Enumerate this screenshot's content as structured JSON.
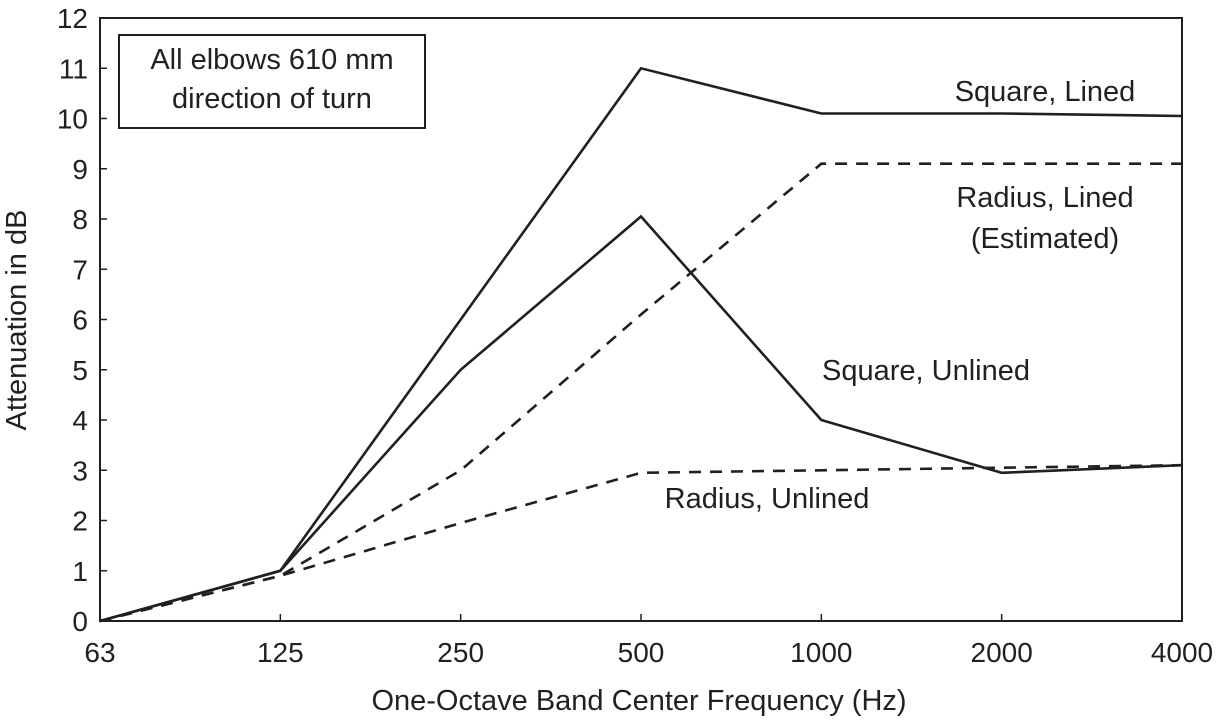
{
  "chart_data": {
    "type": "line",
    "categories": [
      "63",
      "125",
      "250",
      "500",
      "1000",
      "2000",
      "4000"
    ],
    "xlabel": "One-Octave Band Center Frequency (Hz)",
    "ylabel": "Attenuation in dB",
    "ylim": [
      0,
      12
    ],
    "yticks": [
      "0",
      "1",
      "2",
      "3",
      "4",
      "5",
      "6",
      "7",
      "8",
      "9",
      "10",
      "11",
      "12"
    ],
    "grid": false,
    "note": [
      "All elbows 610 mm",
      "direction of turn"
    ],
    "series": [
      {
        "name": "Square, Lined",
        "label_lines": [
          "Square, Lined"
        ],
        "style": "solid",
        "values": [
          0,
          1,
          6,
          11,
          10.1,
          10.1,
          10.05
        ]
      },
      {
        "name": "Radius, Lined (Estimated)",
        "label_lines": [
          "Radius, Lined",
          "(Estimated)"
        ],
        "style": "dashed",
        "values": [
          0,
          0.9,
          3,
          6.1,
          9.1,
          9.1,
          9.1
        ]
      },
      {
        "name": "Square, Unlined",
        "label_lines": [
          "Square, Unlined"
        ],
        "style": "solid",
        "values": [
          0,
          1,
          5,
          8.05,
          4,
          2.95,
          3.1
        ]
      },
      {
        "name": "Radius, Unlined",
        "label_lines": [
          "Radius, Unlined"
        ],
        "style": "dashed",
        "values": [
          0,
          0.9,
          1.95,
          2.95,
          3,
          3.05,
          3.1
        ]
      }
    ],
    "colors": {
      "line": "#231f20",
      "axis": "#231f20",
      "background": "#ffffff"
    }
  }
}
